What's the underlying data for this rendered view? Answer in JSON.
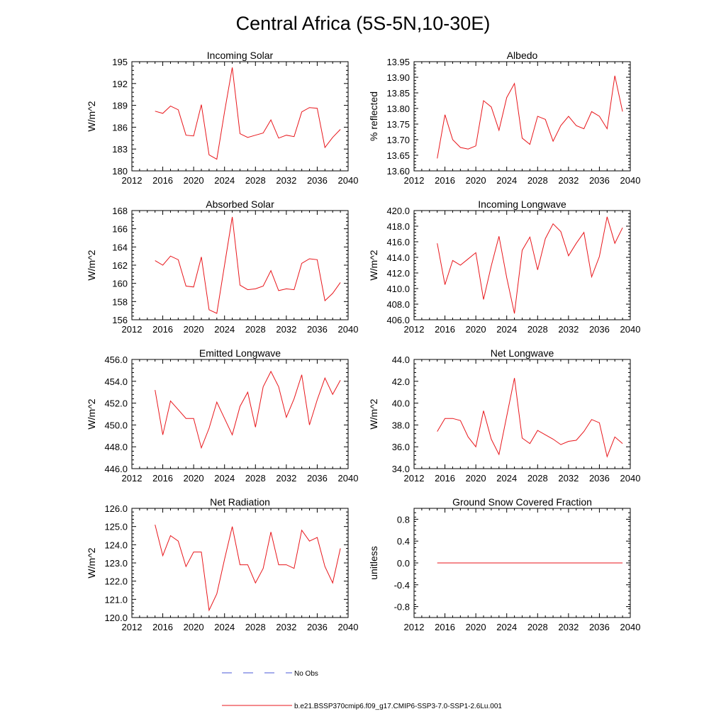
{
  "figure_title": "Central Africa (5S-5N,10-30E)",
  "legend": {
    "obs_label": "No Obs",
    "obs_color": "#4a5ad8",
    "model_label": "b.e21.BSSP370cmip6.f09_g17.CMIP6-SSP3-7.0-SSP1-2.6Lu.001",
    "model_color": "#e8161b"
  },
  "chart_data": [
    {
      "type": "line",
      "title": "Incoming Solar",
      "ylabel": "W/m^2",
      "xlim": [
        2012,
        2040
      ],
      "ylim": [
        180,
        195
      ],
      "yticks": [
        "180",
        "183",
        "186",
        "189",
        "192",
        "195"
      ],
      "xticks": [
        "2012",
        "2016",
        "2020",
        "2024",
        "2028",
        "2032",
        "2036",
        "2040"
      ],
      "x": [
        2015,
        2016,
        2017,
        2018,
        2019,
        2020,
        2021,
        2022,
        2023,
        2024,
        2025,
        2026,
        2027,
        2028,
        2029,
        2030,
        2031,
        2032,
        2033,
        2034,
        2035,
        2036,
        2037,
        2038,
        2039
      ],
      "series": [
        {
          "values": [
            188.2,
            187.9,
            188.9,
            188.4,
            184.9,
            184.8,
            189.1,
            182.2,
            181.6,
            188.1,
            194.2,
            185.1,
            184.6,
            184.9,
            185.2,
            187.0,
            184.5,
            184.9,
            184.7,
            188.1,
            188.7,
            188.6,
            183.2,
            184.6,
            185.7
          ]
        }
      ]
    },
    {
      "type": "line",
      "title": "Albedo",
      "ylabel": "% reflected",
      "xlim": [
        2012,
        2040
      ],
      "ylim": [
        13.6,
        13.95
      ],
      "yticks": [
        "13.60",
        "13.65",
        "13.70",
        "13.75",
        "13.80",
        "13.85",
        "13.90",
        "13.95"
      ],
      "xticks": [
        "2012",
        "2016",
        "2020",
        "2024",
        "2028",
        "2032",
        "2036",
        "2040"
      ],
      "x": [
        2015,
        2016,
        2017,
        2018,
        2019,
        2020,
        2021,
        2022,
        2023,
        2024,
        2025,
        2026,
        2027,
        2028,
        2029,
        2030,
        2031,
        2032,
        2033,
        2034,
        2035,
        2036,
        2037,
        2038,
        2039
      ],
      "series": [
        {
          "values": [
            13.64,
            13.78,
            13.7,
            13.675,
            13.67,
            13.68,
            13.825,
            13.805,
            13.73,
            13.835,
            13.88,
            13.705,
            13.685,
            13.775,
            13.765,
            13.695,
            13.745,
            13.775,
            13.745,
            13.735,
            13.79,
            13.775,
            13.735,
            13.905,
            13.79
          ]
        }
      ]
    },
    {
      "type": "line",
      "title": "Absorbed Solar",
      "ylabel": "W/m^2",
      "xlim": [
        2012,
        2040
      ],
      "ylim": [
        156,
        168
      ],
      "yticks": [
        "156",
        "158",
        "160",
        "162",
        "164",
        "166",
        "168"
      ],
      "xticks": [
        "2012",
        "2016",
        "2020",
        "2024",
        "2028",
        "2032",
        "2036",
        "2040"
      ],
      "x": [
        2015,
        2016,
        2017,
        2018,
        2019,
        2020,
        2021,
        2022,
        2023,
        2024,
        2025,
        2026,
        2027,
        2028,
        2029,
        2030,
        2031,
        2032,
        2033,
        2034,
        2035,
        2036,
        2037,
        2038,
        2039
      ],
      "series": [
        {
          "values": [
            162.5,
            162.0,
            163.0,
            162.6,
            159.7,
            159.6,
            162.9,
            157.1,
            156.7,
            162.0,
            167.3,
            159.8,
            159.3,
            159.4,
            159.7,
            161.4,
            159.2,
            159.4,
            159.3,
            162.2,
            162.7,
            162.6,
            158.1,
            158.9,
            160.1
          ]
        }
      ]
    },
    {
      "type": "line",
      "title": "Incoming Longwave",
      "ylabel": "W/m^2",
      "xlim": [
        2012,
        2040
      ],
      "ylim": [
        406,
        420
      ],
      "yticks": [
        "406.0",
        "408.0",
        "410.0",
        "412.0",
        "414.0",
        "416.0",
        "418.0",
        "420.0"
      ],
      "xticks": [
        "2012",
        "2016",
        "2020",
        "2024",
        "2028",
        "2032",
        "2036",
        "2040"
      ],
      "x": [
        2015,
        2016,
        2017,
        2018,
        2019,
        2020,
        2021,
        2022,
        2023,
        2024,
        2025,
        2026,
        2027,
        2028,
        2029,
        2030,
        2031,
        2032,
        2033,
        2034,
        2035,
        2036,
        2037,
        2038,
        2039
      ],
      "series": [
        {
          "values": [
            415.8,
            410.5,
            413.6,
            413.0,
            413.8,
            414.6,
            408.6,
            412.9,
            416.7,
            411.4,
            406.8,
            414.9,
            416.6,
            412.4,
            416.4,
            418.3,
            417.3,
            414.2,
            415.8,
            417.2,
            411.5,
            414.1,
            419.2,
            415.8,
            417.8
          ]
        }
      ]
    },
    {
      "type": "line",
      "title": "Emitted Longwave",
      "ylabel": "W/m^2",
      "xlim": [
        2012,
        2040
      ],
      "ylim": [
        446,
        456
      ],
      "yticks": [
        "446.0",
        "448.0",
        "450.0",
        "452.0",
        "454.0",
        "456.0"
      ],
      "xticks": [
        "2012",
        "2016",
        "2020",
        "2024",
        "2028",
        "2032",
        "2036",
        "2040"
      ],
      "x": [
        2015,
        2016,
        2017,
        2018,
        2019,
        2020,
        2021,
        2022,
        2023,
        2024,
        2025,
        2026,
        2027,
        2028,
        2029,
        2030,
        2031,
        2032,
        2033,
        2034,
        2035,
        2036,
        2037,
        2038,
        2039
      ],
      "series": [
        {
          "values": [
            453.2,
            449.1,
            452.2,
            451.4,
            450.6,
            450.6,
            447.9,
            449.7,
            452.1,
            450.6,
            449.1,
            451.7,
            453.0,
            449.8,
            453.5,
            454.9,
            453.5,
            450.7,
            452.4,
            454.6,
            450.0,
            452.3,
            454.3,
            452.8,
            454.1
          ]
        }
      ]
    },
    {
      "type": "line",
      "title": "Net Longwave",
      "ylabel": "W/m^2",
      "xlim": [
        2012,
        2040
      ],
      "ylim": [
        34,
        44
      ],
      "yticks": [
        "34.0",
        "36.0",
        "38.0",
        "40.0",
        "42.0",
        "44.0"
      ],
      "xticks": [
        "2012",
        "2016",
        "2020",
        "2024",
        "2028",
        "2032",
        "2036",
        "2040"
      ],
      "x": [
        2015,
        2016,
        2017,
        2018,
        2019,
        2020,
        2021,
        2022,
        2023,
        2024,
        2025,
        2026,
        2027,
        2028,
        2029,
        2030,
        2031,
        2032,
        2033,
        2034,
        2035,
        2036,
        2037,
        2038,
        2039
      ],
      "series": [
        {
          "values": [
            37.4,
            38.6,
            38.6,
            38.4,
            36.9,
            36.0,
            39.3,
            36.7,
            35.3,
            38.8,
            42.3,
            36.8,
            36.3,
            37.5,
            37.1,
            36.7,
            36.2,
            36.5,
            36.6,
            37.4,
            38.5,
            38.2,
            35.1,
            36.9,
            36.3
          ]
        }
      ]
    },
    {
      "type": "line",
      "title": "Net Radiation",
      "ylabel": "W/m^2",
      "xlim": [
        2012,
        2040
      ],
      "ylim": [
        120,
        126
      ],
      "yticks": [
        "120.0",
        "121.0",
        "122.0",
        "123.0",
        "124.0",
        "125.0",
        "126.0"
      ],
      "xticks": [
        "2012",
        "2016",
        "2020",
        "2024",
        "2028",
        "2032",
        "2036",
        "2040"
      ],
      "x": [
        2015,
        2016,
        2017,
        2018,
        2019,
        2020,
        2021,
        2022,
        2023,
        2024,
        2025,
        2026,
        2027,
        2028,
        2029,
        2030,
        2031,
        2032,
        2033,
        2034,
        2035,
        2036,
        2037,
        2038,
        2039
      ],
      "series": [
        {
          "values": [
            125.1,
            123.4,
            124.5,
            124.2,
            122.8,
            123.6,
            123.6,
            120.4,
            121.3,
            123.2,
            125.0,
            122.9,
            122.9,
            121.9,
            122.7,
            124.7,
            122.9,
            122.9,
            122.7,
            124.8,
            124.2,
            124.4,
            122.8,
            121.9,
            123.8
          ]
        }
      ]
    },
    {
      "type": "line",
      "title": "Ground Snow Covered Fraction",
      "ylabel": "unitless",
      "xlim": [
        2012,
        2040
      ],
      "ylim": [
        -1.0,
        1.0
      ],
      "yticks": [
        "-0.8",
        "-0.4",
        "0.0",
        "0.4",
        "0.8"
      ],
      "xticks": [
        "2012",
        "2016",
        "2020",
        "2024",
        "2028",
        "2032",
        "2036",
        "2040"
      ],
      "x": [
        2015,
        2016,
        2017,
        2018,
        2019,
        2020,
        2021,
        2022,
        2023,
        2024,
        2025,
        2026,
        2027,
        2028,
        2029,
        2030,
        2031,
        2032,
        2033,
        2034,
        2035,
        2036,
        2037,
        2038,
        2039
      ],
      "series": [
        {
          "values": [
            0,
            0,
            0,
            0,
            0,
            0,
            0,
            0,
            0,
            0,
            0,
            0,
            0,
            0,
            0,
            0,
            0,
            0,
            0,
            0,
            0,
            0,
            0,
            0,
            0
          ]
        }
      ]
    }
  ]
}
